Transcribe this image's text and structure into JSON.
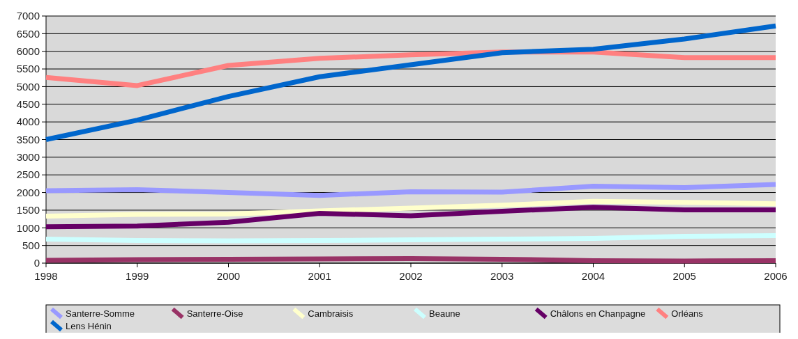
{
  "chart_data": {
    "type": "line",
    "x": [
      1998,
      1999,
      2000,
      2001,
      2002,
      2003,
      2004,
      2005,
      2006
    ],
    "xlim": [
      1998,
      2006
    ],
    "xticks": [
      1998,
      1999,
      2000,
      2001,
      2002,
      2003,
      2004,
      2005,
      2006
    ],
    "ylim": [
      0,
      7000
    ],
    "yticks": [
      0,
      500,
      1000,
      1500,
      2000,
      2500,
      3000,
      3500,
      4000,
      4500,
      5000,
      5500,
      6000,
      6500,
      7000
    ],
    "grid": "y",
    "legend": "bottom",
    "line_style": "solid",
    "marker": "none",
    "series": [
      {
        "name": "Santerre-Somme",
        "color": "#9999ff",
        "values": [
          2050,
          2080,
          2000,
          1920,
          2020,
          2010,
          2180,
          2140,
          2230
        ]
      },
      {
        "name": "Santerre-Oise",
        "color": "#993366",
        "values": [
          80,
          100,
          110,
          120,
          130,
          110,
          70,
          60,
          70
        ]
      },
      {
        "name": "Cambraisis",
        "color": "#ffffcc",
        "values": [
          1330,
          1380,
          1390,
          1480,
          1560,
          1640,
          1750,
          1720,
          1680
        ]
      },
      {
        "name": "Beaune",
        "color": "#ccffff",
        "values": [
          680,
          640,
          630,
          640,
          660,
          680,
          700,
          760,
          780
        ]
      },
      {
        "name": "Châlons en Chanpagne",
        "color": "#660066",
        "values": [
          1030,
          1050,
          1160,
          1410,
          1340,
          1470,
          1580,
          1510,
          1510
        ]
      },
      {
        "name": "Orléans",
        "color": "#ff8080",
        "values": [
          5260,
          5030,
          5600,
          5800,
          5900,
          5980,
          5980,
          5820,
          5820
        ]
      },
      {
        "name": "Lens Hénin",
        "color": "#0066cc",
        "values": [
          3500,
          4050,
          4720,
          5280,
          5620,
          5960,
          6060,
          6350,
          6720
        ]
      }
    ]
  }
}
